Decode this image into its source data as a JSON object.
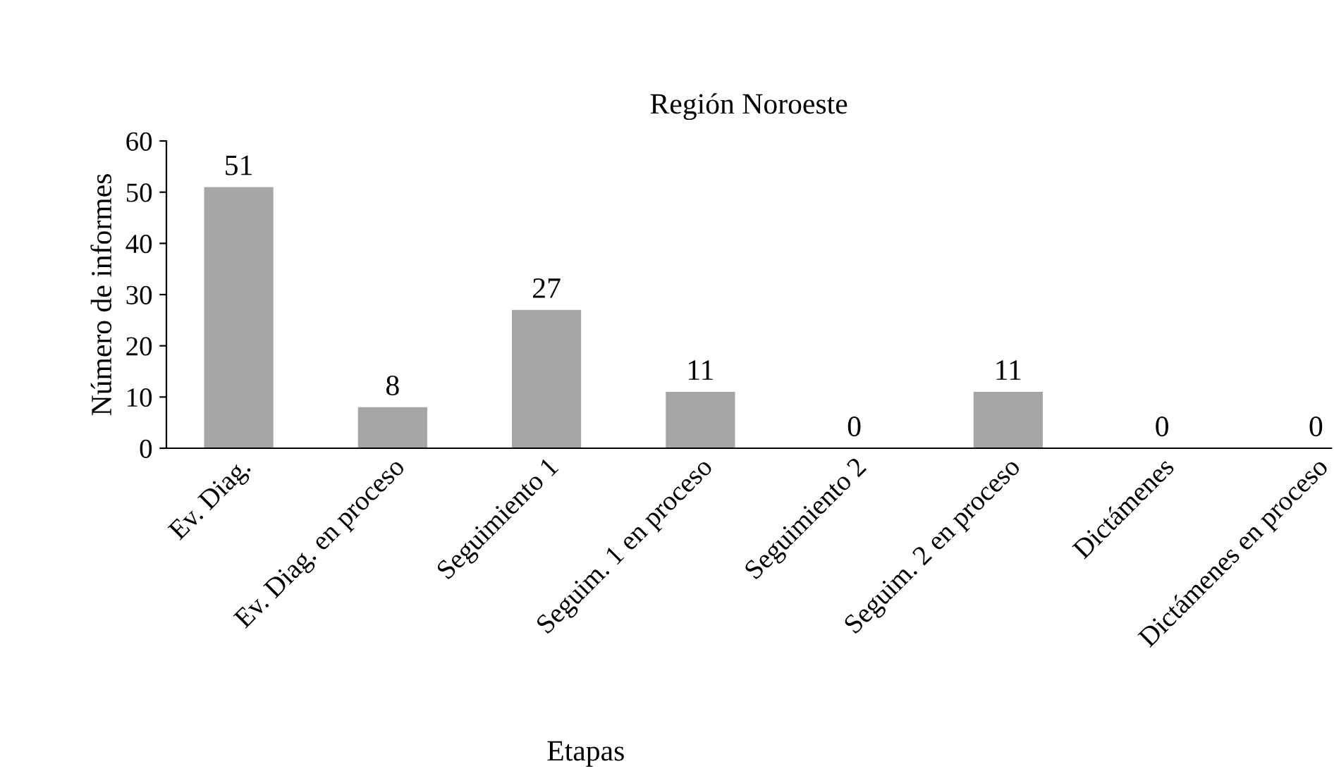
{
  "chart_data": {
    "type": "bar",
    "title": "Región Noroeste",
    "xlabel": "Etapas",
    "ylabel": "Número de informes",
    "categories": [
      "Ev. Diag.",
      "Ev. Diag. en proceso",
      "Seguimiento 1",
      "Seguim. 1 en proceso",
      "Seguimiento 2",
      "Seguim. 2 en proceso",
      "Dictámenes",
      "Dictámenes en proceso"
    ],
    "values": [
      51,
      8,
      27,
      11,
      0,
      11,
      0,
      0
    ],
    "color": "#a6a6a6",
    "ylim": [
      0,
      60
    ],
    "yticks": [
      0,
      10,
      20,
      30,
      40,
      50,
      60
    ],
    "grid": false,
    "legend": false,
    "data_labels": true
  }
}
